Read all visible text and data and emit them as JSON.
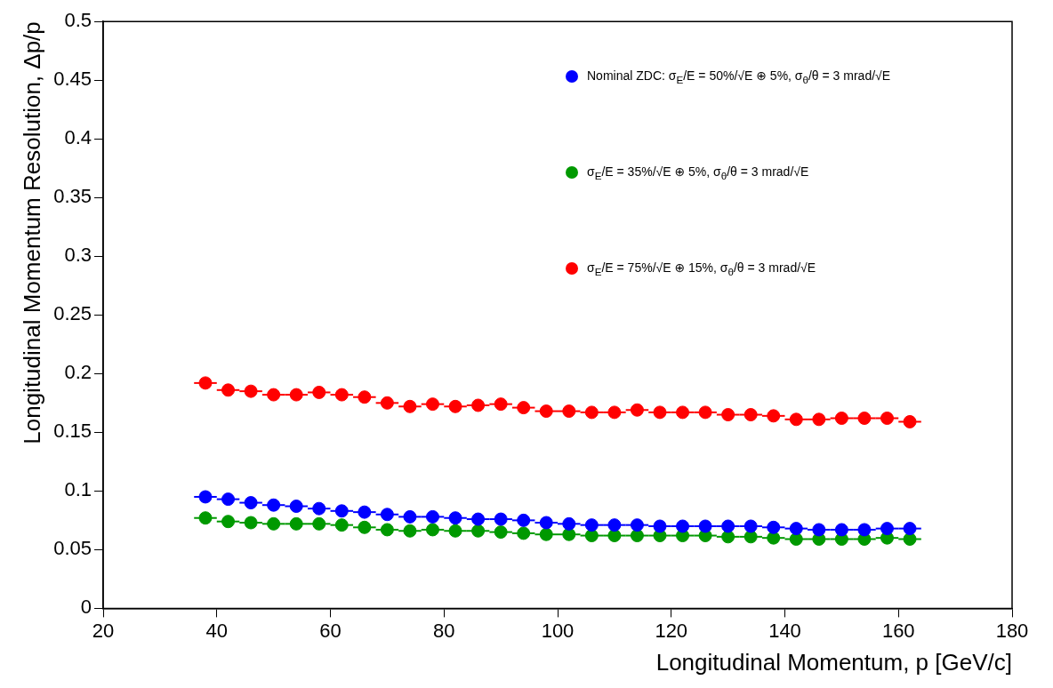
{
  "chart_data": {
    "type": "scatter",
    "xlabel": "Longitudinal Momentum, p [GeV/c]",
    "ylabel": "Longitudinal Momentum Resolution, Δp/p",
    "x": [
      38,
      42,
      46,
      50,
      54,
      58,
      62,
      66,
      70,
      74,
      78,
      82,
      86,
      90,
      94,
      98,
      102,
      106,
      110,
      114,
      118,
      122,
      126,
      130,
      134,
      138,
      142,
      146,
      150,
      154,
      158,
      162
    ],
    "series": [
      {
        "name": "Nominal ZDC: σ$_{E}$/E = 50%/√E ⊕ 5%, σ$_{θ}$/θ = 3 mrad/√E",
        "color": "#0000ff",
        "values": [
          0.095,
          0.093,
          0.09,
          0.088,
          0.087,
          0.085,
          0.083,
          0.082,
          0.08,
          0.078,
          0.078,
          0.077,
          0.076,
          0.076,
          0.075,
          0.073,
          0.072,
          0.071,
          0.071,
          0.071,
          0.07,
          0.07,
          0.07,
          0.07,
          0.07,
          0.069,
          0.068,
          0.067,
          0.067,
          0.067,
          0.068,
          0.068
        ],
        "xerrors": [
          2,
          2,
          2,
          2,
          2,
          2,
          2,
          2,
          2,
          2,
          2,
          2,
          2,
          2,
          2,
          2,
          2,
          2,
          2,
          2,
          2,
          2,
          2,
          2,
          2,
          2,
          2,
          2,
          2,
          2,
          2,
          2
        ]
      },
      {
        "name": "σ$_{E}$/E = 35%/√E ⊕ 5%, σ$_{θ}$/θ = 3 mrad/√E",
        "color": "#009900",
        "values": [
          0.077,
          0.074,
          0.073,
          0.072,
          0.072,
          0.072,
          0.071,
          0.069,
          0.067,
          0.066,
          0.067,
          0.066,
          0.066,
          0.065,
          0.064,
          0.063,
          0.063,
          0.062,
          0.062,
          0.062,
          0.062,
          0.062,
          0.062,
          0.061,
          0.061,
          0.06,
          0.059,
          0.059,
          0.059,
          0.059,
          0.06,
          0.059
        ],
        "xerrors": [
          2,
          2,
          2,
          2,
          2,
          2,
          2,
          2,
          2,
          2,
          2,
          2,
          2,
          2,
          2,
          2,
          2,
          2,
          2,
          2,
          2,
          2,
          2,
          2,
          2,
          2,
          2,
          2,
          2,
          2,
          2,
          2
        ]
      },
      {
        "name": "σ$_{E}$/E = 75%/√E ⊕ 15%, σ$_{θ}$/θ = 3 mrad/√E",
        "color": "#ff0000",
        "values": [
          0.192,
          0.186,
          0.185,
          0.182,
          0.182,
          0.184,
          0.182,
          0.18,
          0.175,
          0.172,
          0.174,
          0.172,
          0.173,
          0.174,
          0.171,
          0.168,
          0.168,
          0.167,
          0.167,
          0.169,
          0.167,
          0.167,
          0.167,
          0.165,
          0.165,
          0.164,
          0.161,
          0.161,
          0.162,
          0.162,
          0.162,
          0.159
        ],
        "xerrors": [
          2,
          2,
          2,
          2,
          2,
          2,
          2,
          2,
          2,
          2,
          2,
          2,
          2,
          2,
          2,
          2,
          2,
          2,
          2,
          2,
          2,
          2,
          2,
          2,
          2,
          2,
          2,
          2,
          2,
          2,
          2,
          2
        ]
      }
    ],
    "xlim": [
      20,
      180
    ],
    "xticks": [
      20,
      40,
      60,
      80,
      100,
      120,
      140,
      160,
      180
    ],
    "ylim": [
      0,
      0.5
    ],
    "yticks": [
      0,
      0.05,
      0.1,
      0.15,
      0.2,
      0.25,
      0.3,
      0.35,
      0.4,
      0.45,
      0.5
    ],
    "grid": false,
    "legend": "top right",
    "marker": "circle"
  }
}
